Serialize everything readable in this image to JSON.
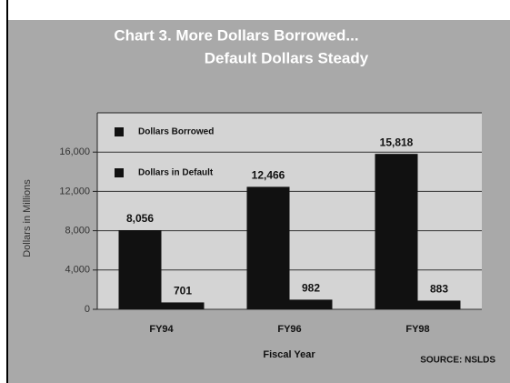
{
  "chart_data": {
    "type": "bar",
    "title": "Chart 3. More Dollars Borrowed...",
    "subtitle": "Default Dollars Steady",
    "categories": [
      "FY94",
      "FY96",
      "FY98"
    ],
    "series": [
      {
        "name": "Dollars Borrowed",
        "color": "#111111",
        "values": [
          8056,
          12466,
          15818
        ],
        "value_labels": [
          "8,056",
          "12,466",
          "15,818"
        ]
      },
      {
        "name": "Dollars in Default",
        "color": "#111111",
        "values": [
          701,
          982,
          883
        ]
      }
    ],
    "ylim": [
      0,
      20000
    ],
    "yticks": [
      0,
      {
        "value": 4000,
        "label": "4,000"
      },
      {
        "value": 8000,
        "label": "8,000"
      },
      {
        "value": 12000,
        "label": "12,000"
      },
      {
        "value": 16000,
        "label": "16,000"
      }
    ],
    "ylabel": "Dollars in Millions",
    "xlabel": "Fiscal Year",
    "source": "SOURCE: NSLDS",
    "grid": true,
    "legend": "top-left"
  }
}
